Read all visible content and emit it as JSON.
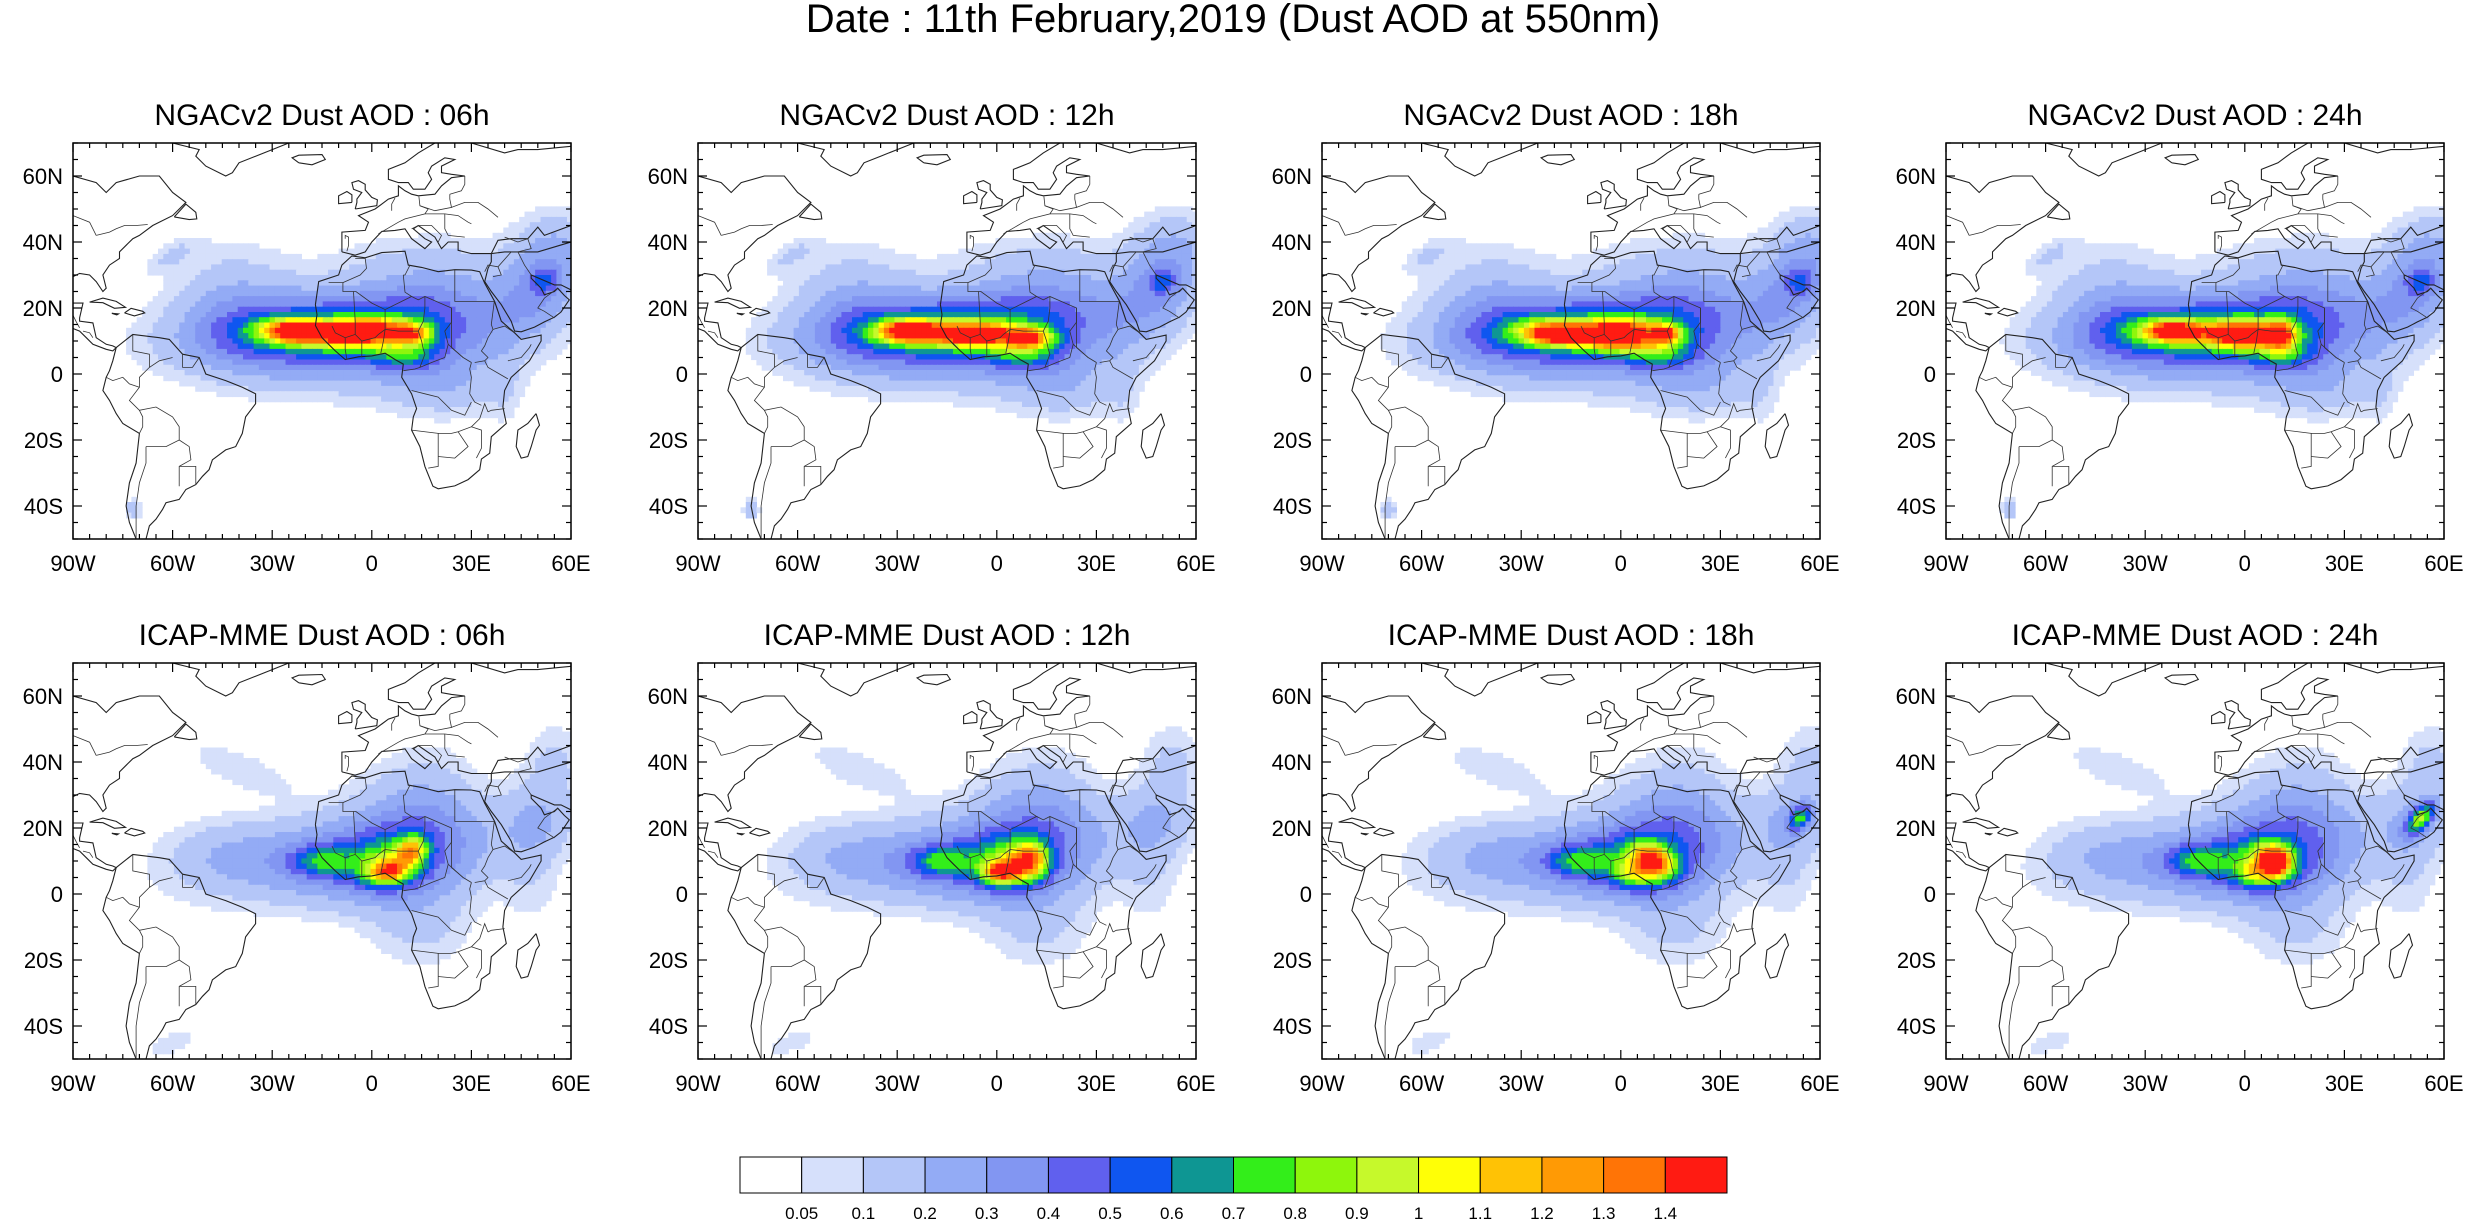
{
  "figure": {
    "title": "Date : 11th February,2019 (Dust AOD at 550nm)"
  },
  "axes": {
    "lat_labels": [
      "60N",
      "40N",
      "20N",
      "0",
      "20S",
      "40S"
    ],
    "lon_labels": [
      "90W",
      "60W",
      "30W",
      "0",
      "30E",
      "60E"
    ],
    "lon_range": [
      -90,
      60
    ],
    "lat_range": [
      -50,
      70
    ]
  },
  "panels": [
    {
      "title": "NGACv2 Dust AOD : 06h",
      "model": "NGACv2",
      "hour": 6
    },
    {
      "title": "NGACv2 Dust AOD : 12h",
      "model": "NGACv2",
      "hour": 12
    },
    {
      "title": "NGACv2 Dust AOD : 18h",
      "model": "NGACv2",
      "hour": 18
    },
    {
      "title": "NGACv2 Dust AOD : 24h",
      "model": "NGACv2",
      "hour": 24
    },
    {
      "title": "ICAP-MME Dust AOD : 06h",
      "model": "ICAP-MME",
      "hour": 6
    },
    {
      "title": "ICAP-MME Dust AOD : 12h",
      "model": "ICAP-MME",
      "hour": 12
    },
    {
      "title": "ICAP-MME Dust AOD : 18h",
      "model": "ICAP-MME",
      "hour": 18
    },
    {
      "title": "ICAP-MME Dust AOD : 24h",
      "model": "ICAP-MME",
      "hour": 24
    }
  ],
  "colorbar": {
    "labels": [
      "0.05",
      "0.1",
      "0.2",
      "0.3",
      "0.4",
      "0.5",
      "0.6",
      "0.7",
      "0.8",
      "0.9",
      "1",
      "1.1",
      "1.2",
      "1.3",
      "1.4"
    ],
    "colors": [
      "#ffffff",
      "#d6e0fb",
      "#b4c6f8",
      "#93abf5",
      "#8296f2",
      "#6060ee",
      "#0f56f0",
      "#0e9693",
      "#33ee1a",
      "#8ef60c",
      "#c6f92b",
      "#ffff06",
      "#ffc205",
      "#ff9a05",
      "#ff7406",
      "#ff1b12"
    ]
  }
}
